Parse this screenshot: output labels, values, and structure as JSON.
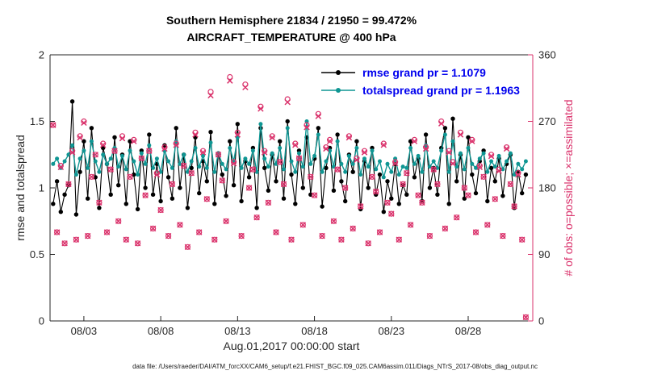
{
  "title": {
    "line1": "Southern Hemisphere 21834 / 21950 = 99.472%",
    "line2": "AIRCRAFT_TEMPERATURE @ 400 hPa"
  },
  "footer": "data file: /Users/raeder/DAI/ATM_forcXX/CAM6_setup/f.e21.FHIST_BGC.f09_025.CAM6assim.011/Diags_NTrS_2017-08/obs_diag_output.nc",
  "colors": {
    "background": "#ffffff",
    "axis": "#262626",
    "rmse": "#000000",
    "totalspread": "#0f9693",
    "obs": "#da336c",
    "legend_text": "#0000ee"
  },
  "chart_data": {
    "type": "line",
    "title": "Southern Hemisphere 21834 / 21950 = 99.472% — AIRCRAFT_TEMPERATURE @ 400 hPa",
    "xlabel": "Aug.01,2017 00:00:00 start",
    "ylabel_left": "rmse and totalspread",
    "ylabel_right": "# of obs: o=possible; ×=assimilated",
    "grid": "off",
    "legend_position": "top-right-inside",
    "xlim": [
      -0.2,
      31.2
    ],
    "ylim_left": [
      0,
      2
    ],
    "ylim_right": [
      0,
      360
    ],
    "x_start": 0,
    "x_step": 0.25,
    "x_unit": "days since Aug.01,2017 00:00:00",
    "xticks": {
      "values": [
        2,
        7,
        12,
        17,
        22,
        27
      ],
      "labels": [
        "08/03",
        "08/08",
        "08/13",
        "08/18",
        "08/23",
        "08/28"
      ]
    },
    "yticks_left": {
      "values": [
        0,
        0.5,
        1,
        1.5,
        2
      ],
      "labels": [
        "0",
        "0.5",
        "1",
        "1.5",
        "2"
      ]
    },
    "yticks_right": {
      "values": [
        0,
        90,
        180,
        270,
        360
      ],
      "labels": [
        "0",
        "90",
        "180",
        "270",
        "360"
      ]
    },
    "legend": [
      {
        "label": "rmse grand pr = 1.1079",
        "series": "rmse"
      },
      {
        "label": "totalspread grand pr = 1.1963",
        "series": "totalspread"
      }
    ],
    "stats": {
      "possible_total": 21950,
      "assimilated_total": 21834,
      "assimilated_pct": 99.472,
      "rmse_grand": 1.1079,
      "totalspread_grand": 1.1963
    },
    "series": [
      {
        "name": "rmse",
        "axis": "left",
        "marker": "filled-circle",
        "values": [
          0.88,
          1.05,
          0.82,
          0.95,
          1.02,
          1.65,
          0.8,
          1.12,
          1.35,
          0.92,
          1.45,
          1.08,
          0.85,
          1.3,
          1.18,
          0.95,
          1.38,
          1.02,
          1.25,
          0.88,
          1.35,
          1.1,
          0.84,
          1.28,
          1.0,
          1.4,
          0.95,
          1.18,
          0.9,
          1.32,
          1.08,
          0.92,
          1.45,
          1.0,
          1.25,
          0.85,
          1.15,
          1.38,
          0.96,
          1.2,
          1.05,
          1.42,
          0.88,
          1.26,
          1.1,
          0.94,
          1.35,
          1.02,
          1.48,
          0.9,
          1.2,
          1.08,
          1.3,
          0.85,
          1.45,
          1.15,
          0.98,
          1.25,
          1.05,
          1.35,
          0.92,
          1.5,
          1.1,
          0.88,
          1.28,
          1.0,
          1.38,
          0.95,
          1.22,
          1.45,
          0.86,
          1.15,
          1.3,
          0.98,
          1.4,
          1.05,
          0.9,
          1.25,
          1.12,
          1.35,
          0.84,
          1.2,
          1.0,
          1.3,
          0.95,
          1.1,
          0.82,
          1.05,
          0.92,
          1.18,
          0.88,
          1.02,
          0.95,
          1.35,
          1.08,
          1.22,
          0.9,
          1.4,
          1.0,
          1.15,
          0.95,
          1.3,
          1.45,
          0.88,
          1.52,
          1.05,
          1.25,
          0.92,
          1.38,
          1.1,
          0.96,
          1.2,
          1.28,
          0.9,
          1.15,
          1.05,
          1.22,
          0.94,
          1.18,
          1.25,
          0.85,
          1.12,
          0.96,
          1.1
        ]
      },
      {
        "name": "totalspread",
        "axis": "left",
        "marker": "filled-circle",
        "values": [
          1.18,
          1.22,
          1.15,
          1.2,
          1.25,
          1.32,
          1.1,
          1.22,
          1.28,
          1.15,
          1.35,
          1.2,
          1.12,
          1.25,
          1.18,
          1.22,
          1.3,
          1.16,
          1.24,
          1.14,
          1.28,
          1.2,
          1.1,
          1.26,
          1.18,
          1.32,
          1.15,
          1.22,
          1.12,
          1.28,
          1.2,
          1.15,
          1.35,
          1.18,
          1.25,
          1.12,
          1.2,
          1.3,
          1.16,
          1.24,
          1.15,
          1.34,
          1.12,
          1.26,
          1.18,
          1.14,
          1.3,
          1.2,
          1.38,
          1.15,
          1.22,
          1.18,
          1.28,
          1.12,
          1.48,
          1.22,
          1.16,
          1.26,
          1.18,
          1.3,
          1.14,
          1.45,
          1.2,
          1.12,
          1.26,
          1.16,
          1.5,
          1.18,
          1.24,
          1.4,
          1.12,
          1.2,
          1.28,
          1.16,
          1.35,
          1.18,
          1.12,
          1.24,
          1.18,
          1.3,
          1.1,
          1.22,
          1.16,
          1.28,
          1.14,
          1.2,
          1.08,
          1.18,
          1.12,
          1.22,
          1.1,
          1.16,
          1.15,
          1.3,
          1.18,
          1.24,
          1.12,
          1.32,
          1.16,
          1.2,
          1.15,
          1.28,
          1.4,
          1.12,
          1.35,
          1.16,
          1.26,
          1.14,
          1.3,
          1.18,
          1.15,
          1.22,
          1.26,
          1.12,
          1.2,
          1.16,
          1.24,
          1.14,
          1.2,
          1.26,
          1.1,
          1.18,
          1.14,
          1.2
        ]
      },
      {
        "name": "obs_possible",
        "axis": "right",
        "marker": "o",
        "values": [
          265,
          120,
          210,
          105,
          185,
          230,
          110,
          250,
          270,
          115,
          195,
          225,
          160,
          240,
          120,
          205,
          230,
          135,
          250,
          110,
          195,
          245,
          105,
          220,
          170,
          230,
          125,
          200,
          150,
          235,
          115,
          185,
          240,
          130,
          210,
          100,
          200,
          255,
          120,
          230,
          165,
          310,
          110,
          225,
          190,
          135,
          330,
          215,
          255,
          115,
          320,
          180,
          205,
          140,
          290,
          230,
          160,
          250,
          120,
          215,
          185,
          300,
          110,
          240,
          220,
          130,
          265,
          195,
          170,
          280,
          115,
          235,
          245,
          135,
          205,
          110,
          180,
          250,
          125,
          220,
          155,
          230,
          105,
          195,
          175,
          120,
          240,
          160,
          145,
          215,
          110,
          185,
          200,
          130,
          245,
          170,
          160,
          235,
          115,
          205,
          185,
          270,
          125,
          230,
          215,
          140,
          255,
          180,
          170,
          245,
          120,
          210,
          195,
          130,
          225,
          165,
          205,
          115,
          235,
          185,
          155,
          200,
          110,
          5
        ]
      },
      {
        "name": "obs_assimilated",
        "axis": "right",
        "marker": "x",
        "values": [
          265,
          120,
          208,
          105,
          185,
          228,
          110,
          248,
          268,
          115,
          195,
          225,
          160,
          238,
          120,
          205,
          230,
          135,
          247,
          110,
          195,
          243,
          105,
          220,
          170,
          230,
          125,
          198,
          150,
          233,
          115,
          185,
          238,
          130,
          210,
          100,
          200,
          252,
          120,
          228,
          165,
          305,
          110,
          225,
          190,
          135,
          325,
          213,
          252,
          115,
          316,
          180,
          205,
          140,
          287,
          228,
          160,
          248,
          120,
          215,
          185,
          296,
          110,
          238,
          220,
          130,
          262,
          195,
          170,
          277,
          115,
          233,
          243,
          135,
          205,
          110,
          180,
          248,
          125,
          218,
          155,
          228,
          105,
          195,
          175,
          120,
          238,
          160,
          145,
          213,
          110,
          185,
          200,
          130,
          243,
          170,
          160,
          233,
          115,
          205,
          185,
          267,
          125,
          228,
          213,
          140,
          252,
          180,
          170,
          243,
          120,
          208,
          195,
          130,
          223,
          165,
          203,
          115,
          233,
          185,
          155,
          198,
          110,
          5
        ]
      }
    ]
  }
}
